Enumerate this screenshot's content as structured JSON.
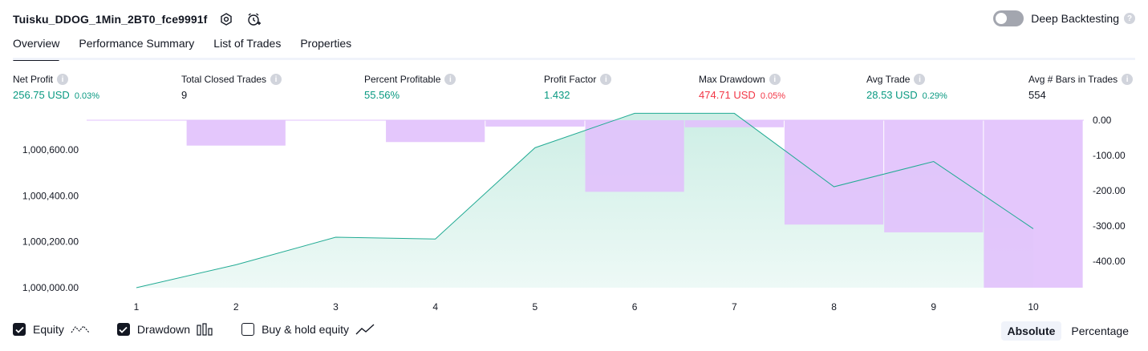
{
  "header": {
    "title": "Tuisku_DDOG_1Min_2BT0_fce9991f",
    "deep_backtesting_label": "Deep Backtesting",
    "deep_backtesting_on": false
  },
  "tabs": [
    {
      "label": "Overview",
      "active": true
    },
    {
      "label": "Performance Summary",
      "active": false
    },
    {
      "label": "List of Trades",
      "active": false
    },
    {
      "label": "Properties",
      "active": false
    }
  ],
  "metrics": [
    {
      "label": "Net Profit",
      "value": "256.75 USD",
      "pct": "0.03%",
      "color": "green"
    },
    {
      "label": "Total Closed Trades",
      "value": "9",
      "pct": "",
      "color": "plain"
    },
    {
      "label": "Percent Profitable",
      "value": "55.56%",
      "pct": "",
      "color": "green"
    },
    {
      "label": "Profit Factor",
      "value": "1.432",
      "pct": "",
      "color": "green"
    },
    {
      "label": "Max Drawdown",
      "value": "474.71 USD",
      "pct": "0.05%",
      "color": "red"
    },
    {
      "label": "Avg Trade",
      "value": "28.53 USD",
      "pct": "0.29%",
      "color": "green"
    },
    {
      "label": "Avg # Bars in Trades",
      "value": "554",
      "pct": "",
      "color": "plain"
    }
  ],
  "colors": {
    "equity_line": "#22ab94",
    "equity_fill": "#cdeee5",
    "drawdown_bar": "#e1c1fc",
    "positive": "#089981",
    "negative": "#f23645"
  },
  "chart_data": {
    "type": "area",
    "x": [
      1,
      2,
      3,
      4,
      5,
      6,
      7,
      8,
      9,
      10
    ],
    "series": [
      {
        "name": "Equity",
        "type": "area",
        "axis": "left",
        "values": [
          1000000,
          1000100,
          1000220,
          1000212,
          1000610,
          1000760,
          1000760,
          1000440,
          1000550,
          1000257
        ]
      },
      {
        "name": "Drawdown",
        "type": "bar",
        "axis": "right",
        "values": [
          0,
          -72,
          0,
          -62,
          -18,
          -203,
          -20,
          -296,
          -318,
          -475
        ]
      }
    ],
    "left_axis": {
      "range": [
        1000000,
        1000730
      ],
      "ticks": [
        1000000,
        1000200,
        1000400,
        1000600
      ],
      "tick_labels": [
        "1,000,000.00",
        "1,000,200.00",
        "1,000,400.00",
        "1,000,600.00"
      ]
    },
    "right_axis": {
      "range": [
        -475,
        0
      ],
      "ticks": [
        0,
        -100,
        -200,
        -300,
        -400
      ],
      "tick_labels": [
        "0.00",
        "-100.00",
        "-200.00",
        "-300.00",
        "-400.00"
      ]
    },
    "x_tick_labels": [
      "1",
      "2",
      "3",
      "4",
      "5",
      "6",
      "7",
      "8",
      "9",
      "10"
    ],
    "grid": false
  },
  "footer": {
    "equity_label": "Equity",
    "equity_checked": true,
    "drawdown_label": "Drawdown",
    "drawdown_checked": true,
    "buyhold_label": "Buy & hold equity",
    "buyhold_checked": false,
    "absolute_label": "Absolute",
    "percentage_label": "Percentage",
    "active_scale": "Absolute"
  }
}
